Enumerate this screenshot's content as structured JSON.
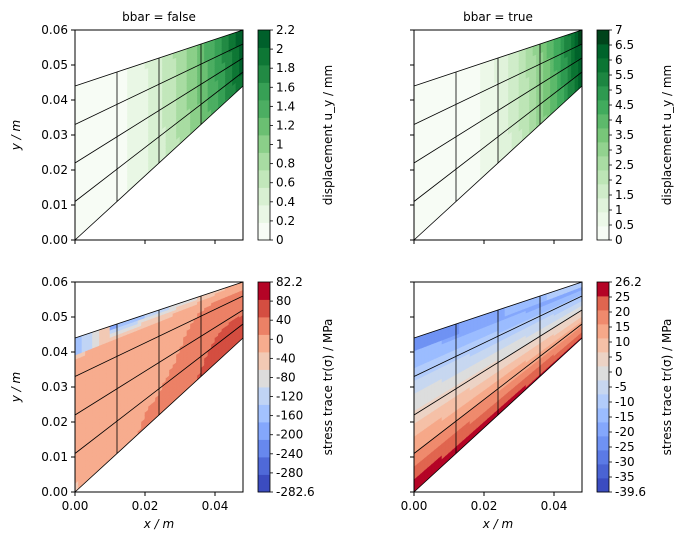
{
  "chart_data": [
    {
      "type": "heatmap",
      "title": "bbar = false",
      "xlabel": "",
      "ylabel": "y / m",
      "xlim": [
        0.0,
        0.048
      ],
      "ylim": [
        0.0,
        0.06
      ],
      "xticks": [
        "",
        "",
        "",
        ""
      ],
      "yticks": [
        "0.00",
        "0.01",
        "0.02",
        "0.03",
        "0.04",
        "0.05",
        "0.06"
      ],
      "colormap": "Greens",
      "colorbar": {
        "label": "displacement u_y / mm",
        "ticks": [
          "0",
          "0.2",
          "0.4",
          "0.6",
          "0.8",
          "1",
          "1.2",
          "1.4",
          "1.6",
          "1.8",
          "2",
          "2.2"
        ],
        "colors": [
          "#f7fcf5",
          "#e9f7e5",
          "#d8f0d2",
          "#c2e7bb",
          "#a8dca2",
          "#8bcf89",
          "#6bbf72",
          "#4cae62",
          "#37a055",
          "#228a44",
          "#0e7735",
          "#00602b"
        ]
      }
    },
    {
      "type": "heatmap",
      "title": "bbar = true",
      "xlabel": "",
      "ylabel": "",
      "xlim": [
        0.0,
        0.048
      ],
      "ylim": [
        0.0,
        0.06
      ],
      "xticks": [
        "",
        "",
        "",
        ""
      ],
      "yticks": [
        "",
        "",
        "",
        "",
        "",
        "",
        ""
      ],
      "colormap": "Greens",
      "colorbar": {
        "label": "displacement u_y / mm",
        "ticks": [
          "0",
          "0.5",
          "1",
          "1.5",
          "2",
          "2.5",
          "3",
          "3.5",
          "4",
          "4.5",
          "5",
          "5.5",
          "6",
          "6.5",
          "7"
        ],
        "colors": [
          "#f7fcf5",
          "#ecf8e8",
          "#e0f3db",
          "#cfecc9",
          "#bde5b6",
          "#a9dca3",
          "#92d28f",
          "#78c679",
          "#5db96b",
          "#41ab5d",
          "#2e9a50",
          "#1d8641",
          "#0b7533",
          "#00632b",
          "#00441b"
        ]
      }
    },
    {
      "type": "heatmap",
      "title": "",
      "xlabel": "x / m",
      "ylabel": "y / m",
      "xlim": [
        0.0,
        0.048
      ],
      "ylim": [
        0.0,
        0.06
      ],
      "xticks": [
        "0.00",
        "0.02",
        "0.04"
      ],
      "yticks": [
        "0.00",
        "0.01",
        "0.02",
        "0.03",
        "0.04",
        "0.05",
        "0.06"
      ],
      "colormap": "coolwarm",
      "colorbar": {
        "label": "stress trace tr(σ) / MPa",
        "ticks": [
          "-282.6",
          "-280",
          "-240",
          "-200",
          "-160",
          "-120",
          "-80",
          "-40",
          "0",
          "40",
          "80",
          "82.2"
        ],
        "colors": [
          "#3b4cc0",
          "#4f69d8",
          "#6788ee",
          "#84a7fc",
          "#a3c2fe",
          "#c0d4f5",
          "#dddcdc",
          "#f2c9b4",
          "#f7ac8e",
          "#ec8166",
          "#d44e41",
          "#b40426"
        ]
      }
    },
    {
      "type": "heatmap",
      "title": "",
      "xlabel": "x / m",
      "ylabel": "",
      "xlim": [
        0.0,
        0.048
      ],
      "ylim": [
        0.0,
        0.06
      ],
      "xticks": [
        "0.00",
        "0.02",
        "0.04"
      ],
      "yticks": [
        "",
        "",
        "",
        "",
        "",
        "",
        ""
      ],
      "colormap": "coolwarm",
      "colorbar": {
        "label": "stress trace tr(σ) / MPa",
        "ticks": [
          "-39.6",
          "-35",
          "-30",
          "-25",
          "-20",
          "-15",
          "-10",
          "-5",
          "0",
          "5",
          "10",
          "15",
          "20",
          "25",
          "26.2"
        ],
        "colors": [
          "#3b4cc0",
          "#4a63d3",
          "#5b7ae5",
          "#6f92f3",
          "#84a7fc",
          "#9bbcff",
          "#b2ccfb",
          "#c7d7f0",
          "#dcdddd",
          "#ecd3c5",
          "#f5c0a7",
          "#f6a889",
          "#ef8a6d",
          "#e0654f",
          "#b40426"
        ]
      }
    }
  ],
  "highlight": {
    "cool_max_green": "#0c7a3a",
    "red_band": "#e8765c",
    "dark_red": "#c0282f",
    "blue": "#4f69d8"
  }
}
